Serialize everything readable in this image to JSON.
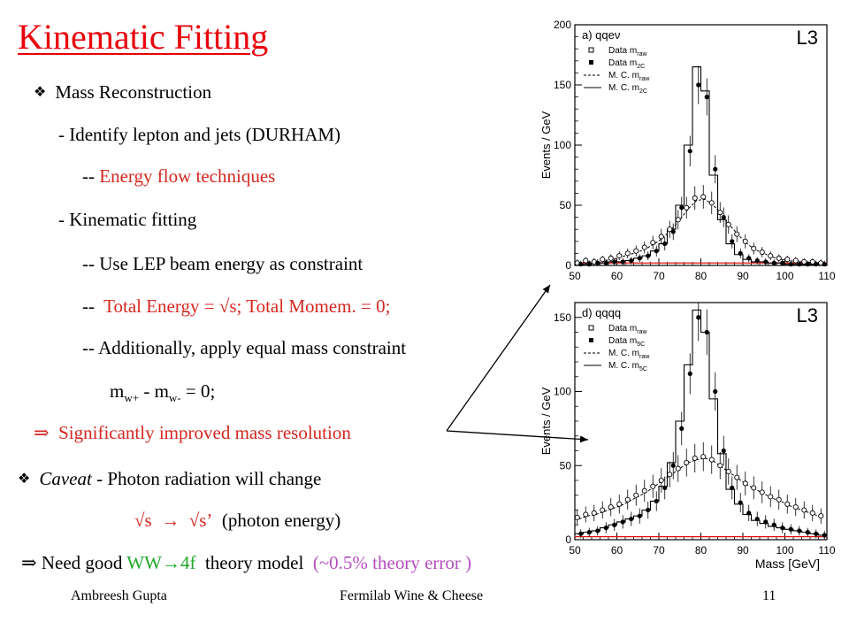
{
  "title": "Kinematic Fitting",
  "text": {
    "mass_reco": "Mass Reconstruction",
    "identify": "- Identify lepton and jets (DURHAM)",
    "eflow_dash": "--",
    "eflow": "Energy flow techniques",
    "kin_fit": "- Kinematic fitting",
    "lep_beam": "-- Use LEP beam energy as constraint",
    "total_dash": "--",
    "total": "Total Energy = √s; Total Momem. = 0;",
    "equal_mass": "-- Additionally, apply equal mass constraint",
    "mw_m1": "m",
    "mw_s1": "w+",
    "mw_mid": " - m",
    "mw_s2": "w-",
    "mw_end": " = 0;",
    "implies1": "⇒",
    "improved": "Significantly improved mass resolution",
    "caveat_word": "Caveat",
    "caveat_rest": " - Photon radiation will change",
    "sqrt_s": "√s",
    "arrow": "→",
    "sqrt_s_prime": "√s’",
    "photon_energy": "(photon energy)",
    "implies2": "⇒",
    "need_good": "Need good ",
    "ww4f": "WW→4f",
    "theory_model": "  theory model  ",
    "theory_error": "(~0.5% theory error )"
  },
  "bullet_glyph": "❖",
  "footer": {
    "author": "Ambreesh Gupta",
    "venue": "Fermilab Wine & Cheese",
    "page": "11"
  },
  "colors": {
    "title": "#e8000b",
    "highlight": "#d4271f",
    "green": "#20a82b",
    "purple": "#b54fc0"
  },
  "chart_data": [
    {
      "type": "line",
      "panel_label": "a) qqeν",
      "experiment": "L3",
      "ylabel": "Events / GeV",
      "xlabel": "",
      "xlim": [
        50,
        110
      ],
      "ylim": [
        0,
        200
      ],
      "x_ticks": [
        "50",
        "60",
        "70",
        "80",
        "90",
        "100",
        "110"
      ],
      "y_ticks": [
        "0",
        "50",
        "100",
        "150",
        "200"
      ],
      "legend": [
        {
          "marker": "open",
          "label": "Data m",
          "sub": "raw"
        },
        {
          "marker": "filled",
          "label": "Data m",
          "sub": "2C"
        },
        {
          "marker": "dashed",
          "label": "M. C. m",
          "sub": "raw"
        },
        {
          "marker": "solid",
          "label": "M. C. m",
          "sub": "2C"
        }
      ],
      "legend_position": "top-left",
      "x": [
        51,
        53,
        55,
        57,
        59,
        61,
        63,
        65,
        67,
        69,
        71,
        73,
        75,
        77,
        79,
        81,
        83,
        85,
        87,
        89,
        91,
        93,
        95,
        97,
        99,
        101,
        103,
        105,
        107,
        109
      ],
      "series": [
        {
          "name": "Data m",
          "marker": "open",
          "values": [
            2,
            4,
            3,
            5,
            6,
            8,
            10,
            12,
            15,
            19,
            24,
            30,
            38,
            48,
            56,
            57,
            52,
            44,
            34,
            26,
            20,
            14,
            11,
            8,
            6,
            5,
            4,
            3,
            3,
            2
          ]
        },
        {
          "name": "Data m",
          "marker": "filled",
          "values": [
            1,
            1,
            2,
            2,
            3,
            3,
            4,
            6,
            8,
            12,
            18,
            28,
            48,
            95,
            150,
            140,
            80,
            40,
            20,
            10,
            6,
            4,
            3,
            2,
            2,
            1,
            1,
            1,
            1,
            1
          ]
        },
        {
          "name": "M. C. m",
          "line": "dashed",
          "values": [
            2,
            3,
            3,
            4,
            5,
            7,
            9,
            11,
            14,
            18,
            23,
            30,
            38,
            47,
            54,
            55,
            50,
            42,
            33,
            25,
            18,
            13,
            10,
            7,
            5,
            4,
            3,
            3,
            2,
            2
          ]
        },
        {
          "name": "M. C. m",
          "line": "solid",
          "values": [
            1,
            1,
            2,
            2,
            3,
            3,
            4,
            6,
            8,
            12,
            18,
            30,
            50,
            100,
            165,
            145,
            75,
            38,
            18,
            9,
            5,
            3,
            3,
            2,
            2,
            1,
            1,
            1,
            1,
            1
          ]
        }
      ]
    },
    {
      "type": "line",
      "panel_label": "d) qqqq",
      "experiment": "L3",
      "ylabel": "Events / GeV",
      "xlabel": "Mass [GeV]",
      "xlim": [
        50,
        110
      ],
      "ylim": [
        0,
        160
      ],
      "x_ticks": [
        "50",
        "60",
        "70",
        "80",
        "90",
        "100",
        "110"
      ],
      "y_ticks": [
        "0",
        "50",
        "100",
        "150"
      ],
      "legend": [
        {
          "marker": "open",
          "label": "Data m",
          "sub": "raw"
        },
        {
          "marker": "filled",
          "label": "Data m",
          "sub": "5C"
        },
        {
          "marker": "dashed",
          "label": "M. C. m",
          "sub": "raw"
        },
        {
          "marker": "solid",
          "label": "M. C. m",
          "sub": "5C"
        }
      ],
      "legend_position": "top-left",
      "x": [
        51,
        53,
        55,
        57,
        59,
        61,
        63,
        65,
        67,
        69,
        71,
        73,
        75,
        77,
        79,
        81,
        83,
        85,
        87,
        89,
        91,
        93,
        95,
        97,
        99,
        101,
        103,
        105,
        107,
        109
      ],
      "series": [
        {
          "name": "Data m",
          "marker": "open",
          "values": [
            15,
            17,
            18,
            20,
            22,
            24,
            27,
            30,
            33,
            36,
            40,
            44,
            48,
            52,
            55,
            56,
            54,
            50,
            46,
            42,
            38,
            35,
            32,
            29,
            27,
            24,
            22,
            20,
            18,
            16
          ]
        },
        {
          "name": "Data m",
          "marker": "filled",
          "values": [
            4,
            5,
            6,
            8,
            10,
            12,
            14,
            16,
            20,
            26,
            35,
            50,
            75,
            112,
            150,
            140,
            100,
            60,
            35,
            25,
            18,
            14,
            12,
            10,
            8,
            7,
            6,
            5,
            4,
            3
          ]
        },
        {
          "name": "M. C. m",
          "line": "dashed",
          "values": [
            14,
            16,
            17,
            19,
            21,
            23,
            26,
            29,
            32,
            36,
            40,
            44,
            48,
            52,
            54,
            55,
            53,
            49,
            45,
            41,
            37,
            34,
            31,
            28,
            26,
            23,
            21,
            19,
            17,
            15
          ]
        },
        {
          "name": "M. C. m",
          "line": "solid",
          "values": [
            4,
            5,
            6,
            8,
            10,
            12,
            14,
            16,
            20,
            26,
            36,
            52,
            80,
            118,
            155,
            140,
            95,
            58,
            34,
            24,
            17,
            13,
            11,
            9,
            8,
            7,
            6,
            5,
            4,
            3
          ]
        }
      ]
    }
  ]
}
